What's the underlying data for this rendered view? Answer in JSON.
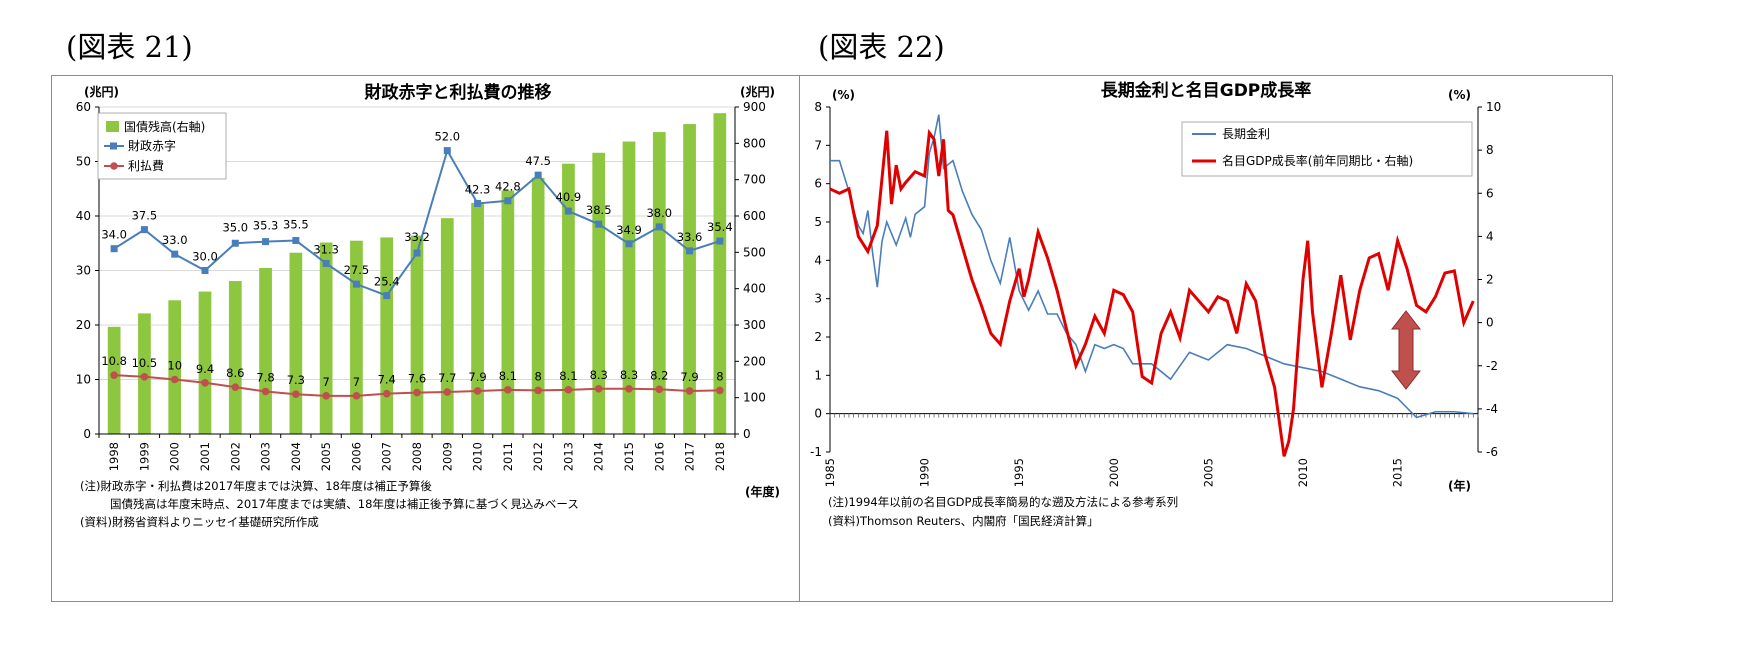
{
  "figure_labels": [
    "(図表 21)",
    "(図表 22)"
  ],
  "chart_data": [
    {
      "type": "bar",
      "title": "財政赤字と利払費の推移",
      "y_unit_left": "(兆円)",
      "y_unit_right": "(兆円)",
      "x_unit": "(年度)",
      "left_ticks": [
        "0",
        "10",
        "20",
        "30",
        "40",
        "50",
        "60"
      ],
      "right_ticks": [
        "0",
        "100",
        "200",
        "300",
        "400",
        "500",
        "600",
        "700",
        "800",
        "900"
      ],
      "ylim_left": [
        0,
        60
      ],
      "ylim_right": [
        0,
        900
      ],
      "categories": [
        "1998",
        "1999",
        "2000",
        "2001",
        "2002",
        "2003",
        "2004",
        "2005",
        "2006",
        "2007",
        "2008",
        "2009",
        "2010",
        "2011",
        "2012",
        "2013",
        "2014",
        "2015",
        "2016",
        "2017",
        "2018"
      ],
      "series": [
        {
          "name": "国債残高(右軸)",
          "kind": "bar",
          "axis": "right",
          "color": "#8DC63F",
          "values": [
            295,
            332,
            368,
            392,
            421,
            457,
            499,
            527,
            532,
            541,
            546,
            594,
            636,
            670,
            705,
            744,
            774,
            805,
            831,
            853,
            883
          ]
        },
        {
          "name": "財政赤字",
          "kind": "line",
          "marker": "square",
          "axis": "left",
          "color": "#4A7EBB",
          "values": [
            34.0,
            37.5,
            33.0,
            30.0,
            35.0,
            35.3,
            35.5,
            31.3,
            27.5,
            25.4,
            33.2,
            52.0,
            42.3,
            42.8,
            47.5,
            40.9,
            38.5,
            34.9,
            38.0,
            33.6,
            35.4
          ],
          "labels": [
            "34.0",
            "37.5",
            "33.0",
            "30.0",
            "35.0",
            "35.3",
            "35.5",
            "31.3",
            "27.5",
            "25.4",
            "33.2",
            "52.0",
            "42.3",
            "42.8",
            "47.5",
            "40.9",
            "38.5",
            "34.9",
            "38.0",
            "33.6",
            "35.4"
          ]
        },
        {
          "name": "利払費",
          "kind": "line",
          "marker": "circle",
          "axis": "left",
          "color": "#C0504D",
          "values": [
            10.8,
            10.5,
            10,
            9.4,
            8.6,
            7.8,
            7.3,
            7,
            7,
            7.4,
            7.6,
            7.7,
            7.9,
            8.1,
            8,
            8.1,
            8.3,
            8.3,
            8.2,
            7.9,
            8
          ],
          "labels": [
            "10.8",
            "10.5",
            "10",
            "9.4",
            "8.6",
            "7.8",
            "7.3",
            "7",
            "7",
            "7.4",
            "7.6",
            "7.7",
            "7.9",
            "8.1",
            "8",
            "8.1",
            "8.3",
            "8.3",
            "8.2",
            "7.9",
            "8"
          ]
        }
      ],
      "legend_position": "top-left",
      "grid": true,
      "notes": [
        "(注)財政赤字・利払費は2017年度までは決算、18年度は補正予算後",
        "国債残高は年度末時点、2017年度までは実績、18年度は補正後予算に基づく見込みベース",
        "(資料)財務省資料よりニッセイ基礎研究所作成"
      ]
    },
    {
      "type": "line",
      "title": "長期金利と名目GDP成長率",
      "y_unit_left": "(%)",
      "y_unit_right": "(%)",
      "x_unit": "(年)",
      "left_ticks": [
        "-1",
        "0",
        "1",
        "2",
        "3",
        "4",
        "5",
        "6",
        "7",
        "8"
      ],
      "right_ticks": [
        "-6",
        "-4",
        "-2",
        "0",
        "2",
        "4",
        "6",
        "8",
        "10"
      ],
      "x_ticks": [
        "1985",
        "1990",
        "1995",
        "2000",
        "2005",
        "2010",
        "2015"
      ],
      "ylim_left": [
        -1,
        8
      ],
      "ylim_right": [
        -6,
        10
      ],
      "xlim": [
        1985,
        2019.25
      ],
      "series": [
        {
          "name": "長期金利",
          "axis": "left",
          "color": "#4A7EBB",
          "x": [
            1985,
            1985.5,
            1986,
            1986.25,
            1986.5,
            1986.75,
            1987,
            1987.25,
            1987.5,
            1987.75,
            1988,
            1988.5,
            1989,
            1989.25,
            1989.5,
            1990,
            1990.25,
            1990.5,
            1990.75,
            1991,
            1991.5,
            1992,
            1992.5,
            1993,
            1993.5,
            1994,
            1994.5,
            1995,
            1995.5,
            1996,
            1996.5,
            1997,
            1997.5,
            1998,
            1998.5,
            1999,
            1999.5,
            2000,
            2000.5,
            2001,
            2002,
            2003,
            2004,
            2005,
            2006,
            2007,
            2008,
            2009,
            2010,
            2011,
            2012,
            2013,
            2014,
            2015,
            2016,
            2017,
            2018,
            2019
          ],
          "y": [
            6.6,
            6.6,
            5.8,
            5.3,
            4.9,
            4.7,
            5.3,
            4.2,
            3.3,
            4.5,
            5.0,
            4.4,
            5.1,
            4.6,
            5.2,
            5.4,
            6.8,
            7.2,
            7.8,
            6.4,
            6.6,
            5.8,
            5.2,
            4.8,
            4.0,
            3.4,
            4.6,
            3.2,
            2.7,
            3.2,
            2.6,
            2.6,
            2.1,
            1.8,
            1.1,
            1.8,
            1.7,
            1.8,
            1.7,
            1.3,
            1.3,
            0.9,
            1.6,
            1.4,
            1.8,
            1.7,
            1.5,
            1.3,
            1.2,
            1.1,
            0.9,
            0.7,
            0.6,
            0.4,
            -0.1,
            0.05,
            0.05,
            0.0
          ]
        },
        {
          "name": "名目GDP成長率(前年同期比・右軸)",
          "axis": "right",
          "color": "#E00000",
          "x": [
            1985,
            1985.5,
            1986,
            1986.5,
            1987,
            1987.5,
            1988,
            1988.25,
            1988.5,
            1988.75,
            1989,
            1989.5,
            1990,
            1990.25,
            1990.5,
            1990.75,
            1991,
            1991.25,
            1991.5,
            1992,
            1992.5,
            1993,
            1993.5,
            1994,
            1994.5,
            1995,
            1995.25,
            1995.5,
            1996,
            1996.5,
            1997,
            1997.5,
            1998,
            1998.5,
            1999,
            1999.5,
            2000,
            2000.5,
            2001,
            2001.5,
            2002,
            2002.5,
            2003,
            2003.5,
            2004,
            2004.5,
            2005,
            2005.5,
            2006,
            2006.5,
            2007,
            2007.5,
            2008,
            2008.5,
            2009,
            2009.25,
            2009.5,
            2010,
            2010.25,
            2010.5,
            2011,
            2011.5,
            2012,
            2012.5,
            2013,
            2013.5,
            2014,
            2014.5,
            2015,
            2015.5,
            2016,
            2016.5,
            2017,
            2017.5,
            2018,
            2018.5,
            2019
          ],
          "y": [
            6.2,
            6.0,
            6.2,
            4.0,
            3.3,
            4.5,
            8.9,
            5.5,
            7.3,
            6.2,
            6.5,
            7.0,
            6.8,
            8.8,
            8.5,
            6.8,
            8.5,
            5.2,
            5.0,
            3.5,
            2.0,
            0.8,
            -0.5,
            -1.0,
            1.0,
            2.5,
            1.2,
            2.0,
            4.2,
            3.0,
            1.5,
            -0.3,
            -2.0,
            -1.0,
            0.3,
            -0.5,
            1.5,
            1.3,
            0.5,
            -2.5,
            -2.8,
            -0.5,
            0.5,
            -0.7,
            1.5,
            1.0,
            0.5,
            1.2,
            1.0,
            -0.5,
            1.8,
            1.0,
            -1.5,
            -3.0,
            -6.2,
            -5.5,
            -4.0,
            2.0,
            3.8,
            0.5,
            -3.0,
            -0.5,
            2.2,
            -0.8,
            1.5,
            3.0,
            3.2,
            1.5,
            3.8,
            2.5,
            0.8,
            0.5,
            1.2,
            2.3,
            2.4,
            0.0,
            1.0
          ]
        }
      ],
      "legend_position": "top-right",
      "grid": false,
      "notes": [
        "(注)1994年以前の名目GDP成長率簡易的な遡及方法による参考系列",
        "(資料)Thomson Reuters、内閣府「国民経済計算」"
      ]
    }
  ]
}
